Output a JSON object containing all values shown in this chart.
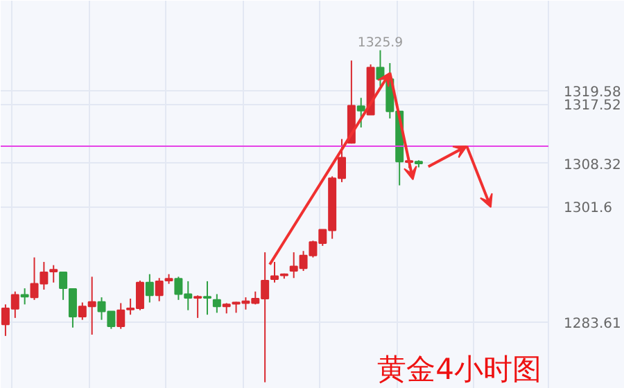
{
  "chart_data": {
    "type": "candlestick",
    "categories": [
      null,
      null,
      null,
      null,
      null,
      null,
      null,
      null,
      null,
      null,
      null,
      null,
      null,
      null,
      null,
      null,
      null,
      null,
      null,
      null,
      null,
      null,
      null,
      null,
      null,
      null,
      null,
      null,
      null,
      null,
      null,
      null,
      null,
      null,
      null,
      null,
      null,
      null,
      null,
      null,
      null,
      null,
      null,
      null,
      null,
      null,
      null,
      null,
      null,
      null,
      null,
      null,
      null,
      null,
      null,
      null,
      null
    ],
    "ohlc": [
      [
        1283.3,
        1286.4,
        1281.5,
        1285.8
      ],
      [
        1285.7,
        1288.4,
        1284.3,
        1287.9
      ],
      [
        1287.9,
        1288.9,
        1286.4,
        1287.6
      ],
      [
        1287.5,
        1293.7,
        1287.1,
        1289.6
      ],
      [
        1289.6,
        1293.0,
        1288.7,
        1291.4
      ],
      [
        1291.5,
        1292.5,
        1289.8,
        1291.8
      ],
      [
        1291.4,
        1291.4,
        1287.1,
        1288.9
      ],
      [
        1288.8,
        1288.8,
        1282.8,
        1284.5
      ],
      [
        1284.5,
        1286.7,
        1284.0,
        1286.1
      ],
      [
        1286.1,
        1290.7,
        1281.7,
        1286.8
      ],
      [
        1286.8,
        1287.5,
        1284.0,
        1285.3
      ],
      [
        1285.3,
        1285.3,
        1282.6,
        1283.0
      ],
      [
        1283.0,
        1286.6,
        1282.6,
        1285.5
      ],
      [
        1285.6,
        1287.3,
        1284.8,
        1285.8
      ],
      [
        1285.8,
        1290.1,
        1285.5,
        1289.8
      ],
      [
        1289.8,
        1291.1,
        1286.7,
        1287.8
      ],
      [
        1287.8,
        1290.5,
        1286.9,
        1290.0
      ],
      [
        1290.1,
        1291.1,
        1289.6,
        1290.4
      ],
      [
        1290.4,
        1290.7,
        1287.1,
        1288.0
      ],
      [
        1288.0,
        1290.0,
        1285.5,
        1287.4
      ],
      [
        1287.4,
        1287.8,
        1284.3,
        1287.6
      ],
      [
        1287.6,
        1290.0,
        1284.8,
        1287.4
      ],
      [
        1287.1,
        1288.0,
        1285.1,
        1286.1
      ],
      [
        1286.1,
        1286.6,
        1285.0,
        1286.4
      ],
      [
        1286.5,
        1286.8,
        1285.1,
        1286.7
      ],
      [
        1286.6,
        1287.5,
        1285.6,
        1286.9
      ],
      [
        1286.6,
        1288.4,
        1286.4,
        1287.3
      ],
      [
        1287.3,
        1294.5,
        1274.3,
        1290.1
      ],
      [
        1290.3,
        1293.0,
        1289.8,
        1290.8
      ],
      [
        1290.9,
        1291.2,
        1290.4,
        1291.1
      ],
      [
        1291.6,
        1294.5,
        1290.5,
        1292.3
      ],
      [
        1292.0,
        1294.7,
        1291.6,
        1294.0
      ],
      [
        1294.0,
        1296.3,
        1293.7,
        1296.1
      ],
      [
        1295.9,
        1298.0,
        1295.5,
        1298.0
      ],
      [
        1297.9,
        1306.3,
        1296.6,
        1306.0
      ],
      [
        1306.0,
        1312.1,
        1305.4,
        1309.2
      ],
      [
        1311.5,
        1324.3,
        1311.4,
        1317.3
      ],
      [
        1317.2,
        1318.5,
        1313.9,
        1316.5
      ],
      [
        1315.9,
        1323.7,
        1315.9,
        1323.2
      ],
      [
        1323.2,
        1325.9,
        1320.3,
        1321.4
      ],
      [
        1321.4,
        1323.9,
        1315.3,
        1316.4
      ],
      [
        1316.4,
        1316.4,
        1304.9,
        1308.6
      ],
      [
        1308.5,
        1309.2,
        1307.6,
        1308.7
      ],
      [
        1308.6,
        1308.8,
        1307.7,
        1308.3
      ],
      null,
      null,
      null,
      null,
      null,
      null,
      null,
      null,
      null,
      null,
      null,
      null,
      null
    ],
    "colors": [
      "#d9282f",
      "#d9282f",
      "#2ea043",
      "#d9282f",
      "#d9282f",
      "#d9282f",
      "#2ea043",
      "#2ea043",
      "#d9282f",
      "#d9282f",
      "#2ea043",
      "#2ea043",
      "#d9282f",
      "#d9282f",
      "#d9282f",
      "#2ea043",
      "#d9282f",
      "#d9282f",
      "#2ea043",
      "#2ea043",
      "#d9282f",
      "#2ea043",
      "#2ea043",
      "#d9282f",
      "#d9282f",
      "#d9282f",
      "#d9282f",
      "#d9282f",
      "#d9282f",
      "#d9282f",
      "#d9282f",
      "#d9282f",
      "#d9282f",
      "#d9282f",
      "#d9282f",
      "#d9282f",
      "#d9282f",
      "#2ea043",
      "#d9282f",
      "#2ea043",
      "#2ea043",
      "#2ea043",
      "#d9282f",
      "#2ea043",
      null,
      null,
      null,
      null,
      null,
      null,
      null,
      null,
      null,
      null,
      null,
      null,
      null
    ],
    "ylim": [
      1273.3,
      1333.6
    ],
    "yticks": [
      1283.61,
      1301.6,
      1308.32,
      1317.52,
      1319.58
    ],
    "tick_labels": "y",
    "grid": true,
    "ref_lines": [
      {
        "axis": "y",
        "value": 1311.0,
        "color": "#e642e6"
      }
    ],
    "annotations": [
      "1325.9",
      "黄金4小时图"
    ]
  }
}
